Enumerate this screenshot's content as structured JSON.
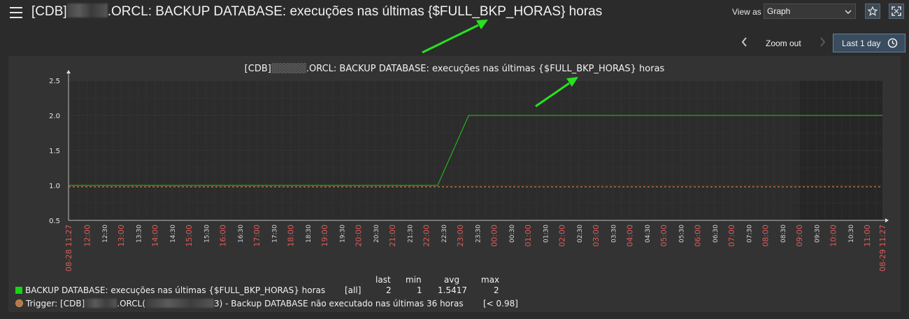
{
  "header": {
    "title_prefix": "[CDB]",
    "title_suffix": ".ORCL: BACKUP DATABASE: execuções nas últimas {$FULL_BKP_HORAS} horas",
    "view_as_label": "View as",
    "view_as_value": "Graph"
  },
  "timebar": {
    "zoom_out_label": "Zoom out",
    "period_label": "Last 1 day"
  },
  "graph": {
    "title_prefix": "[CDB]",
    "title_suffix": ".ORCL: BACKUP DATABASE: execuções nas últimas {$FULL_BKP_HORAS} horas"
  },
  "legend": {
    "headers": [
      "last",
      "min",
      "avg",
      "max"
    ],
    "series_name": "BACKUP DATABASE: execuções nas últimas {$FULL_BKP_HORAS} horas",
    "series_func": "[all]",
    "series_values": [
      "2",
      "1",
      "1.5417",
      "2"
    ],
    "trigger_prefix": "Trigger: [CDB]",
    "trigger_mid": ".ORCL(",
    "trigger_suffix": "3) - Backup DATABASE não executado nas últimas 36 horas",
    "trigger_cond": "[< 0.98]"
  },
  "colors": {
    "series": "#1ec81e",
    "trigger": "#ff8c40",
    "red_tick": "#e05a5a",
    "accent": "#63809a"
  },
  "chart_data": {
    "type": "line",
    "yticks": [
      "2.5",
      "2.0",
      "1.5",
      "1.0",
      "0.5"
    ],
    "ylim": [
      0.5,
      2.5
    ],
    "xticks": [
      {
        "t": "08-28 11:27",
        "red": true
      },
      {
        "t": "12:00",
        "red": true
      },
      {
        "t": "12:30",
        "red": false
      },
      {
        "t": "13:00",
        "red": true
      },
      {
        "t": "13:30",
        "red": false
      },
      {
        "t": "14:00",
        "red": true
      },
      {
        "t": "14:30",
        "red": false
      },
      {
        "t": "15:00",
        "red": true
      },
      {
        "t": "15:30",
        "red": false
      },
      {
        "t": "16:00",
        "red": true
      },
      {
        "t": "16:30",
        "red": false
      },
      {
        "t": "17:00",
        "red": true
      },
      {
        "t": "17:30",
        "red": false
      },
      {
        "t": "18:00",
        "red": true
      },
      {
        "t": "18:30",
        "red": false
      },
      {
        "t": "19:00",
        "red": true
      },
      {
        "t": "19:30",
        "red": false
      },
      {
        "t": "20:00",
        "red": true
      },
      {
        "t": "20:30",
        "red": false
      },
      {
        "t": "21:00",
        "red": true
      },
      {
        "t": "21:30",
        "red": false
      },
      {
        "t": "22:00",
        "red": true
      },
      {
        "t": "22:30",
        "red": false
      },
      {
        "t": "23:00",
        "red": true
      },
      {
        "t": "23:30",
        "red": false
      },
      {
        "t": "00:00",
        "red": true
      },
      {
        "t": "00:30",
        "red": false
      },
      {
        "t": "01:00",
        "red": true
      },
      {
        "t": "01:30",
        "red": false
      },
      {
        "t": "02:00",
        "red": true
      },
      {
        "t": "02:30",
        "red": false
      },
      {
        "t": "03:00",
        "red": true
      },
      {
        "t": "03:30",
        "red": false
      },
      {
        "t": "04:00",
        "red": true
      },
      {
        "t": "04:30",
        "red": false
      },
      {
        "t": "05:00",
        "red": true
      },
      {
        "t": "05:30",
        "red": false
      },
      {
        "t": "06:00",
        "red": true
      },
      {
        "t": "06:30",
        "red": false
      },
      {
        "t": "07:00",
        "red": true
      },
      {
        "t": "07:30",
        "red": false
      },
      {
        "t": "08:00",
        "red": true
      },
      {
        "t": "08:30",
        "red": false
      },
      {
        "t": "09:00",
        "red": true
      },
      {
        "t": "09:30",
        "red": false
      },
      {
        "t": "10:00",
        "red": true
      },
      {
        "t": "10:30",
        "red": false
      },
      {
        "t": "11:00",
        "red": true
      },
      {
        "t": "08-29 11:27",
        "red": true
      }
    ],
    "series": [
      {
        "name": "BACKUP DATABASE: execuções nas últimas {$FULL_BKP_HORAS} horas",
        "x": [
          "08-28 11:27",
          "08-28 22:20",
          "08-28 23:15",
          "08-29 11:27"
        ],
        "values": [
          1,
          1,
          2,
          2
        ]
      }
    ],
    "trigger_threshold": 0.98,
    "grid": true
  }
}
